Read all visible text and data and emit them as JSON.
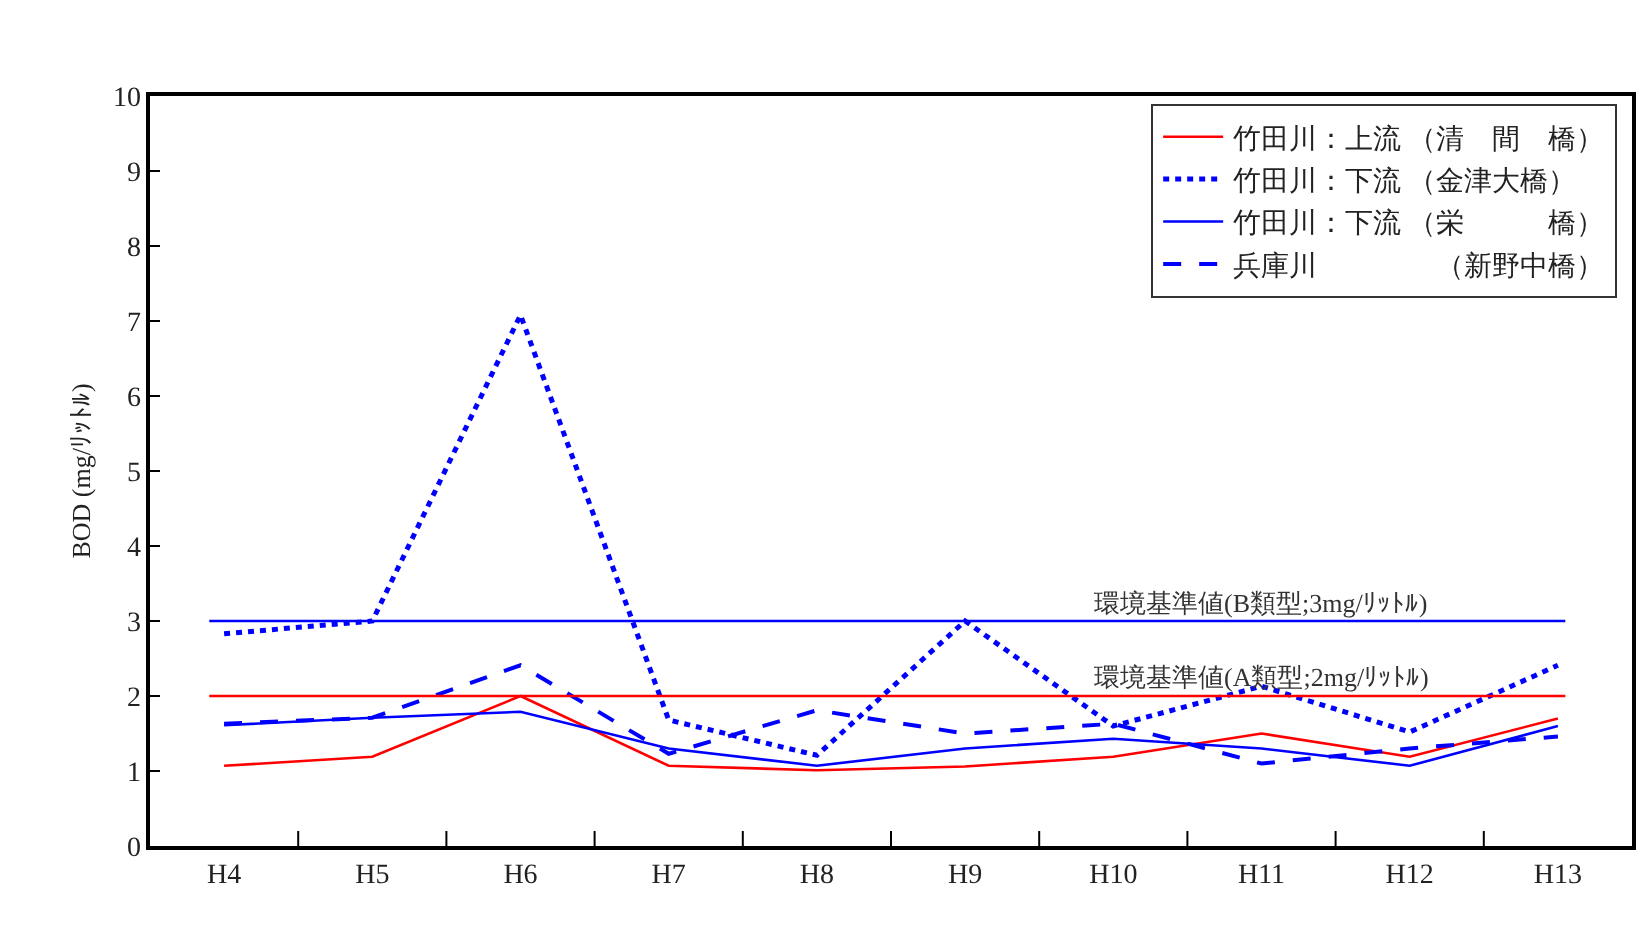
{
  "chart_data": {
    "type": "line",
    "ylabel": "BOD (mg/ﾘｯﾄﾙ)",
    "categories": [
      "H4",
      "H5",
      "H6",
      "H7",
      "H8",
      "H9",
      "H10",
      "H11",
      "H12",
      "H13"
    ],
    "series": [
      {
        "name": "竹田川：上流 （清　間　橋）",
        "color": "#ff0000",
        "line_style": "solid",
        "values": [
          1.07,
          1.19,
          2.0,
          1.07,
          1.01,
          1.06,
          1.19,
          1.5,
          1.19,
          1.7
        ]
      },
      {
        "name": "竹田川：下流 （金津大橋）",
        "color": "#0000ff",
        "line_style": "dotted",
        "values": [
          2.83,
          3.0,
          7.08,
          1.68,
          1.21,
          3.0,
          1.6,
          2.13,
          1.52,
          2.41
        ]
      },
      {
        "name": "竹田川：下流 （栄　　　橋）",
        "color": "#0000ff",
        "line_style": "solid",
        "values": [
          1.61,
          1.71,
          1.79,
          1.3,
          1.07,
          1.3,
          1.43,
          1.3,
          1.07,
          1.6
        ]
      },
      {
        "name": "兵庫川　　　　 （新野中橋）",
        "color": "#0000ff",
        "line_style": "dashed",
        "values": [
          1.63,
          1.71,
          2.41,
          1.23,
          1.81,
          1.5,
          1.63,
          1.1,
          1.3,
          1.46
        ]
      }
    ],
    "ylim": [
      0,
      10
    ],
    "yticks": [
      0,
      1,
      2,
      3,
      4,
      5,
      6,
      7,
      8,
      9,
      10
    ],
    "ref_lines": [
      {
        "axis": "y",
        "value": 3,
        "label": "環境基準値(B類型;3mg/ﾘｯﾄﾙ)",
        "color": "#0000ff"
      },
      {
        "axis": "y",
        "value": 2,
        "label": "環境基準値(A類型;2mg/ﾘｯﾄﾙ)",
        "color": "#ff0000"
      }
    ],
    "grid": false,
    "legend": "top right",
    "marker": "none"
  }
}
